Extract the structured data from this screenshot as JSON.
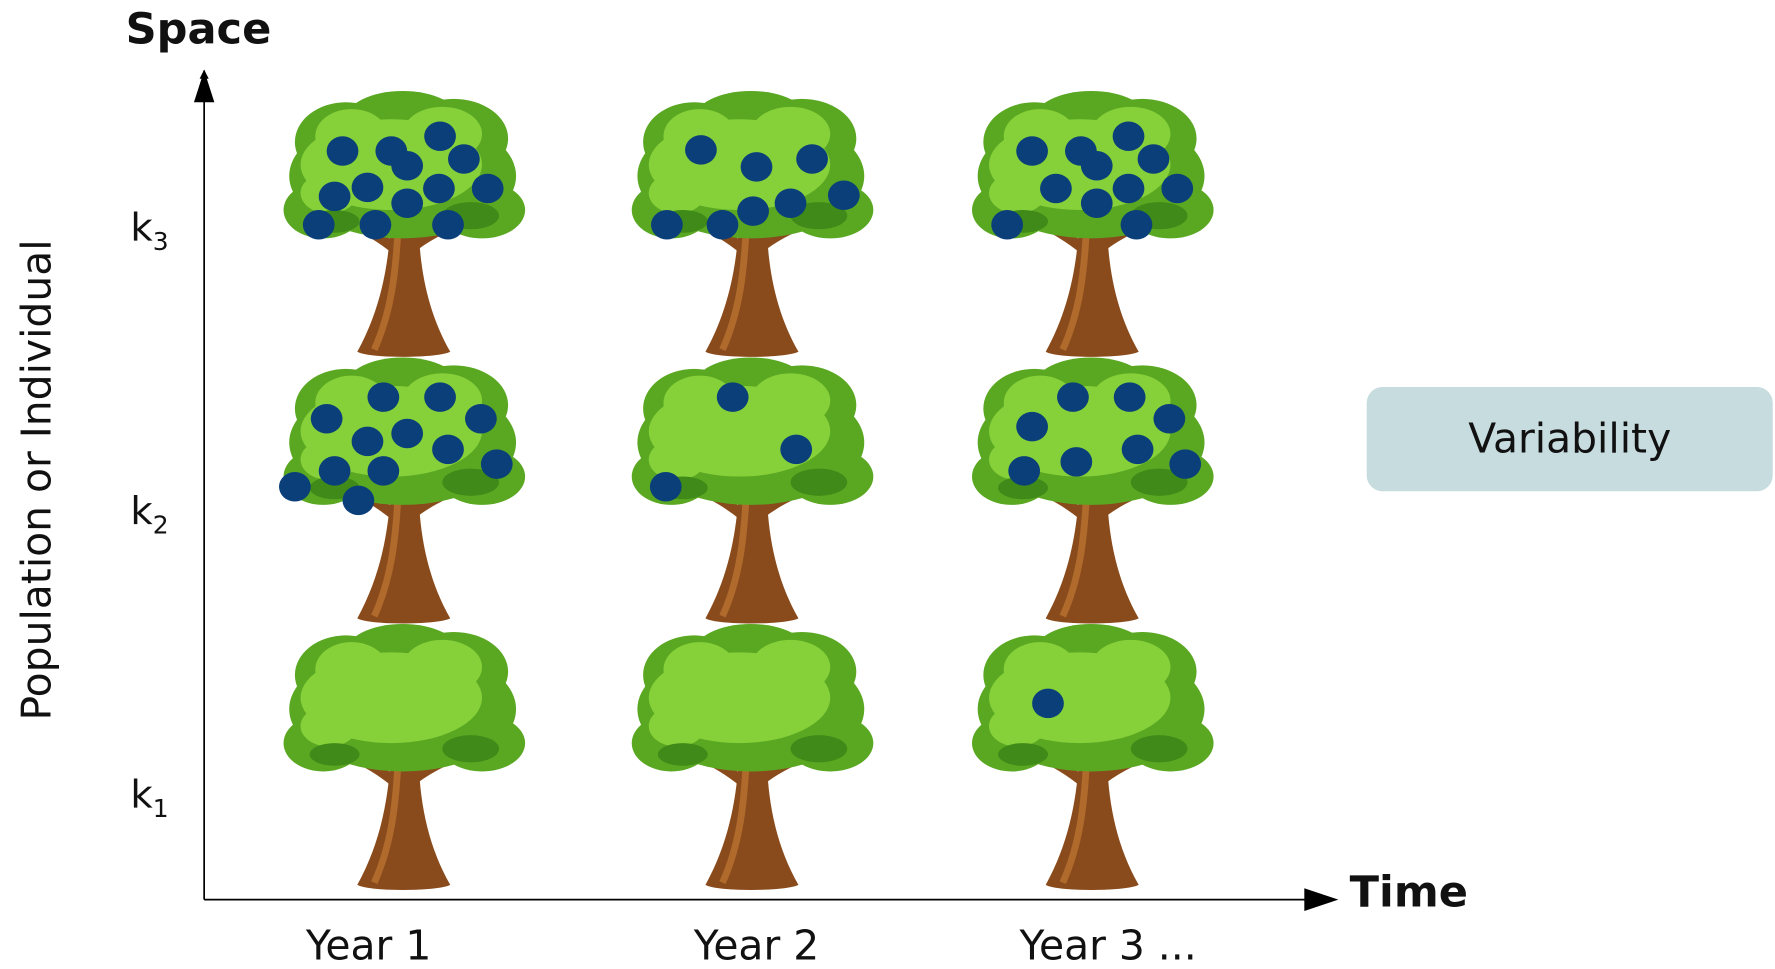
{
  "axes": {
    "y_title": "Space",
    "y_label": "Population or Individual",
    "x_title": "Time"
  },
  "rows": [
    {
      "base": "k",
      "sub": "3"
    },
    {
      "base": "k",
      "sub": "2"
    },
    {
      "base": "k",
      "sub": "1"
    }
  ],
  "columns": [
    "Year 1",
    "Year 2",
    "Year 3 ..."
  ],
  "callout": "Variability"
}
